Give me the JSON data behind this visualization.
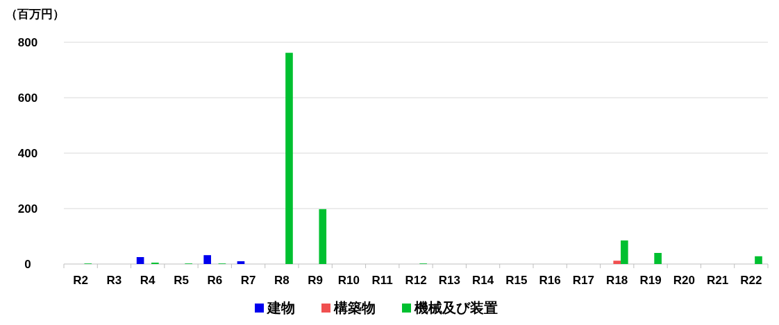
{
  "chart_data": {
    "type": "bar",
    "ylabel": "（百万円）",
    "categories": [
      "R2",
      "R3",
      "R4",
      "R5",
      "R6",
      "R7",
      "R8",
      "R9",
      "R10",
      "R11",
      "R12",
      "R13",
      "R14",
      "R15",
      "R16",
      "R17",
      "R18",
      "R19",
      "R20",
      "R21",
      "R22"
    ],
    "series": [
      {
        "name": "建物",
        "color": "#0000ee",
        "values": [
          0,
          0,
          25,
          0,
          32,
          10,
          0,
          0,
          0,
          0,
          0,
          0,
          0,
          0,
          0,
          0,
          0,
          0,
          0,
          0,
          0
        ]
      },
      {
        "name": "構築物",
        "color": "#f05050",
        "values": [
          0,
          0,
          0,
          0,
          0,
          0,
          0,
          0,
          0,
          0,
          0,
          0,
          0,
          0,
          0,
          0,
          12,
          0,
          0,
          0,
          0
        ]
      },
      {
        "name": "機械及び装置",
        "color": "#00c030",
        "values": [
          2,
          0,
          5,
          2,
          2,
          0,
          762,
          198,
          0,
          0,
          2,
          0,
          0,
          0,
          0,
          0,
          85,
          40,
          0,
          0,
          28
        ]
      }
    ],
    "ylim": [
      0,
      800
    ],
    "yticks": [
      0,
      200,
      400,
      600,
      800
    ],
    "grid": "y",
    "legend": "bottom"
  }
}
